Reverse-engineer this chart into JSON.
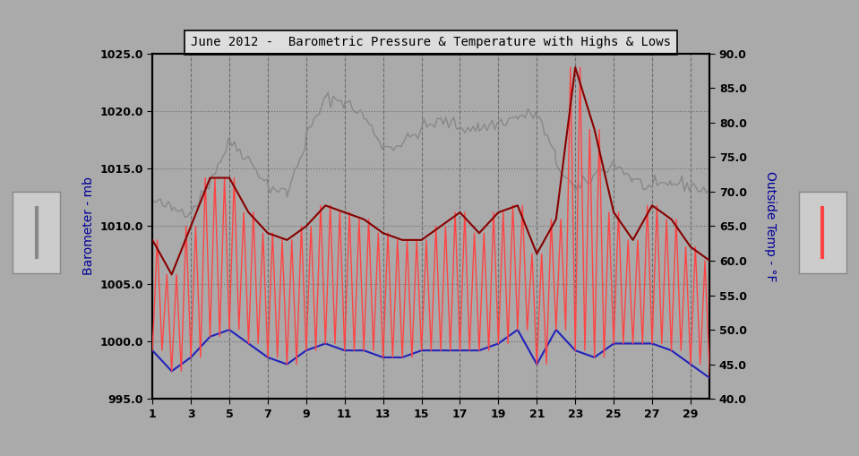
{
  "title": "June 2012 -  Barometric Pressure & Temperature with Highs & Lows",
  "bg_color": "#aaaaaa",
  "plot_bg_color": "#aaaaaa",
  "ylabel_left": "Barometer - mb",
  "ylabel_right": "Outside Temp - °F",
  "ylim_left": [
    995.0,
    1025.0
  ],
  "ylim_right": [
    40.0,
    90.0
  ],
  "yticks_left": [
    995.0,
    1000.0,
    1005.0,
    1010.0,
    1015.0,
    1020.0,
    1025.0
  ],
  "yticks_right": [
    40.0,
    45.0,
    50.0,
    55.0,
    60.0,
    65.0,
    70.0,
    75.0,
    80.0,
    85.0,
    90.0
  ],
  "xlim": [
    1,
    30
  ],
  "xticks": [
    1,
    3,
    5,
    7,
    9,
    11,
    13,
    15,
    17,
    19,
    21,
    23,
    25,
    27,
    29
  ],
  "days": [
    1,
    2,
    3,
    4,
    5,
    6,
    7,
    8,
    9,
    10,
    11,
    12,
    13,
    14,
    15,
    16,
    17,
    18,
    19,
    20,
    21,
    22,
    23,
    24,
    25,
    26,
    27,
    28,
    29,
    30
  ],
  "barometer": [
    1012.2,
    1011.5,
    1011.3,
    1014.0,
    1017.5,
    1015.8,
    1013.5,
    1012.8,
    1017.8,
    1021.2,
    1020.8,
    1019.5,
    1016.8,
    1017.2,
    1018.5,
    1019.2,
    1018.6,
    1018.5,
    1019.0,
    1019.5,
    1019.8,
    1015.5,
    1013.0,
    1014.5,
    1015.5,
    1014.0,
    1013.2,
    1013.8,
    1013.5,
    1013.0
  ],
  "temp_high": [
    63,
    58,
    65,
    72,
    72,
    67,
    64,
    63,
    65,
    68,
    67,
    66,
    64,
    63,
    63,
    65,
    67,
    64,
    67,
    68,
    61,
    66,
    88,
    79,
    67,
    63,
    68,
    66,
    62,
    60
  ],
  "temp_low": [
    47,
    44,
    46,
    49,
    50,
    48,
    46,
    45,
    47,
    48,
    47,
    47,
    46,
    46,
    47,
    47,
    47,
    47,
    48,
    50,
    45,
    50,
    47,
    46,
    48,
    48,
    48,
    47,
    45,
    43
  ],
  "barometer_color": "#888888",
  "temp_high_color": "#ff4444",
  "temp_low_color": "#2222bb",
  "temp_connected_color": "#880000",
  "grid_color": "#666666",
  "title_box_color": "#dddddd",
  "legend_box_color": "#cccccc"
}
